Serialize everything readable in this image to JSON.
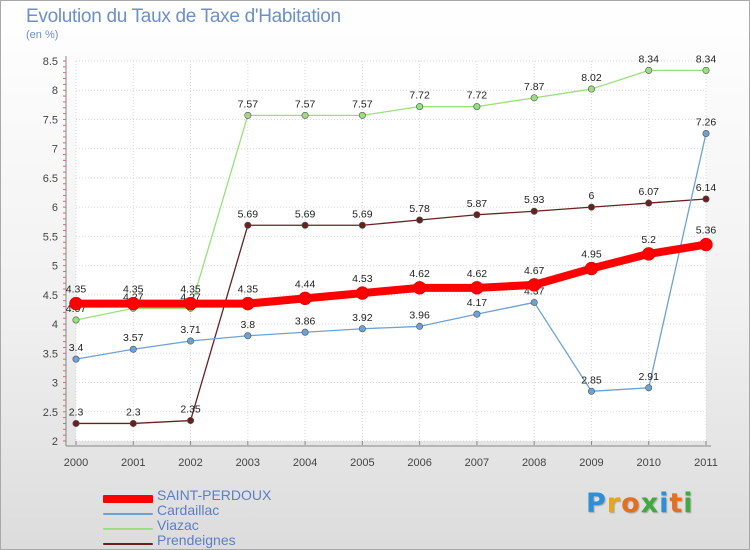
{
  "header": {
    "title": "Evolution du Taux de Taxe d'Habitation",
    "subtitle": "(en %)"
  },
  "logo": {
    "text": "Proxiti",
    "letters": [
      {
        "ch": "P",
        "color": "#2e8fd6"
      },
      {
        "ch": "r",
        "color": "#e9a41e"
      },
      {
        "ch": "o",
        "color": "#e36f20"
      },
      {
        "ch": "x",
        "color": "#43a83f"
      },
      {
        "ch": "i",
        "color": "#2e8fd6"
      },
      {
        "ch": "t",
        "color": "#e36f20"
      },
      {
        "ch": "i",
        "color": "#43a83f"
      }
    ]
  },
  "chart_data": {
    "type": "line",
    "x": [
      "2000",
      "2001",
      "2002",
      "2003",
      "2004",
      "2005",
      "2006",
      "2007",
      "2008",
      "2009",
      "2010",
      "2011"
    ],
    "ylim": [
      2,
      8.5
    ],
    "yticks": [
      "2",
      "2.5",
      "3",
      "3.5",
      "4",
      "4.5",
      "5",
      "5.5",
      "6",
      "6.5",
      "7",
      "7.5",
      "8",
      "8.5"
    ],
    "grid": true,
    "legend_position": "bottom-left",
    "series": [
      {
        "name": "Prendeignes",
        "color": "#6b2020",
        "values": [
          2.3,
          2.3,
          2.35,
          5.69,
          5.69,
          5.69,
          5.78,
          5.87,
          5.93,
          6,
          6.07,
          6.14
        ],
        "labels": [
          "2.3",
          "2.3",
          "2.35",
          "5.69",
          "5.69",
          "5.69",
          "5.78",
          "5.87",
          "5.93",
          "6",
          "6.07",
          "6.14"
        ]
      },
      {
        "name": "Viazac",
        "color": "#99e07a",
        "values": [
          4.07,
          4.27,
          4.27,
          7.57,
          7.57,
          7.57,
          7.72,
          7.72,
          7.87,
          8.02,
          8.34,
          8.34
        ],
        "labels": [
          "4.07",
          "4.27",
          "4.27",
          "7.57",
          "7.57",
          "7.57",
          "7.72",
          "7.72",
          "7.87",
          "8.02",
          "8.34",
          "8.34"
        ]
      },
      {
        "name": "Cardaillac",
        "color": "#6da2d3",
        "values": [
          3.4,
          3.57,
          3.71,
          3.8,
          3.86,
          3.92,
          3.96,
          4.17,
          4.37,
          2.85,
          2.91,
          7.26
        ],
        "labels": [
          "3.4",
          "3.57",
          "3.71",
          "3.8",
          "3.86",
          "3.92",
          "3.96",
          "4.17",
          "4.37",
          "2.85",
          "2.91",
          "7.26"
        ]
      },
      {
        "name": "SAINT-PERDOUX",
        "color": "#ff0000",
        "values": [
          4.35,
          4.35,
          4.35,
          4.35,
          4.44,
          4.53,
          4.62,
          4.62,
          4.67,
          4.95,
          5.2,
          5.36
        ],
        "labels": [
          "4.35",
          "4.35",
          "4.35",
          "4.35",
          "4.44",
          "4.53",
          "4.62",
          "4.62",
          "4.67",
          "4.95",
          "5.2",
          "5.36"
        ]
      }
    ],
    "legend": [
      "SAINT-PERDOUX",
      "Cardaillac",
      "Viazac",
      "Prendeignes"
    ]
  }
}
